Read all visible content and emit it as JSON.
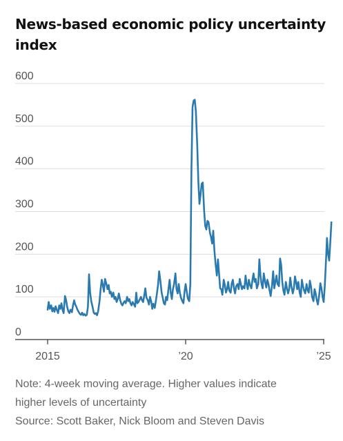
{
  "title": "News-based economic policy uncertainty index",
  "note": "Note: 4-week moving average. Higher values indicate higher levels of uncertainty",
  "note_line1": "Note: 4-week moving average. Higher values indicate",
  "note_line2": "higher levels of uncertainty",
  "source": "Source: Scott Baker, Nick Bloom and Steven Davis",
  "chart_data": {
    "type": "line",
    "title": "News-based economic policy uncertainty index",
    "xlabel": "",
    "ylabel": "",
    "xlim": [
      2015.0,
      2025.0
    ],
    "ylim": [
      0,
      600
    ],
    "yticks": [
      0,
      100,
      200,
      300,
      400,
      500,
      600
    ],
    "xticks": [
      {
        "value": 2015,
        "label": "2015"
      },
      {
        "value": 2020,
        "label": "’20"
      },
      {
        "value": 2025,
        "label": "’25"
      }
    ],
    "grid": "horizontal",
    "color": "#2a7ab0",
    "series": [
      {
        "name": "",
        "points": [
          [
            2015.0,
            70
          ],
          [
            2015.04,
            88
          ],
          [
            2015.08,
            72
          ],
          [
            2015.13,
            80
          ],
          [
            2015.17,
            66
          ],
          [
            2015.21,
            74
          ],
          [
            2015.25,
            65
          ],
          [
            2015.29,
            78
          ],
          [
            2015.33,
            70
          ],
          [
            2015.38,
            62
          ],
          [
            2015.42,
            80
          ],
          [
            2015.46,
            72
          ],
          [
            2015.5,
            85
          ],
          [
            2015.54,
            70
          ],
          [
            2015.58,
            62
          ],
          [
            2015.63,
            102
          ],
          [
            2015.67,
            92
          ],
          [
            2015.71,
            76
          ],
          [
            2015.75,
            66
          ],
          [
            2015.79,
            62
          ],
          [
            2015.83,
            70
          ],
          [
            2015.88,
            64
          ],
          [
            2015.92,
            80
          ],
          [
            2015.96,
            92
          ],
          [
            2016.0,
            82
          ],
          [
            2016.04,
            77
          ],
          [
            2016.08,
            70
          ],
          [
            2016.13,
            64
          ],
          [
            2016.17,
            60
          ],
          [
            2016.21,
            58
          ],
          [
            2016.25,
            63
          ],
          [
            2016.29,
            57
          ],
          [
            2016.33,
            60
          ],
          [
            2016.38,
            56
          ],
          [
            2016.42,
            58
          ],
          [
            2016.46,
            77
          ],
          [
            2016.5,
            153
          ],
          [
            2016.54,
            110
          ],
          [
            2016.58,
            90
          ],
          [
            2016.63,
            76
          ],
          [
            2016.67,
            63
          ],
          [
            2016.71,
            60
          ],
          [
            2016.75,
            62
          ],
          [
            2016.79,
            57
          ],
          [
            2016.83,
            66
          ],
          [
            2016.88,
            90
          ],
          [
            2016.92,
            118
          ],
          [
            2016.96,
            140
          ],
          [
            2017.0,
            128
          ],
          [
            2017.04,
            112
          ],
          [
            2017.08,
            142
          ],
          [
            2017.13,
            130
          ],
          [
            2017.17,
            118
          ],
          [
            2017.21,
            128
          ],
          [
            2017.25,
            108
          ],
          [
            2017.29,
            112
          ],
          [
            2017.33,
            100
          ],
          [
            2017.38,
            110
          ],
          [
            2017.42,
            95
          ],
          [
            2017.46,
            100
          ],
          [
            2017.5,
            88
          ],
          [
            2017.54,
            95
          ],
          [
            2017.58,
            108
          ],
          [
            2017.63,
            92
          ],
          [
            2017.67,
            84
          ],
          [
            2017.71,
            80
          ],
          [
            2017.75,
            86
          ],
          [
            2017.79,
            90
          ],
          [
            2017.83,
            85
          ],
          [
            2017.88,
            100
          ],
          [
            2017.92,
            90
          ],
          [
            2017.96,
            95
          ],
          [
            2018.0,
            85
          ],
          [
            2018.04,
            80
          ],
          [
            2018.08,
            88
          ],
          [
            2018.13,
            82
          ],
          [
            2018.17,
            77
          ],
          [
            2018.21,
            110
          ],
          [
            2018.25,
            85
          ],
          [
            2018.29,
            88
          ],
          [
            2018.33,
            93
          ],
          [
            2018.38,
            100
          ],
          [
            2018.42,
            92
          ],
          [
            2018.46,
            88
          ],
          [
            2018.5,
            103
          ],
          [
            2018.54,
            120
          ],
          [
            2018.58,
            98
          ],
          [
            2018.63,
            92
          ],
          [
            2018.67,
            82
          ],
          [
            2018.71,
            100
          ],
          [
            2018.75,
            90
          ],
          [
            2018.79,
            72
          ],
          [
            2018.83,
            84
          ],
          [
            2018.88,
            74
          ],
          [
            2018.92,
            90
          ],
          [
            2018.96,
            108
          ],
          [
            2019.0,
            128
          ],
          [
            2019.04,
            160
          ],
          [
            2019.08,
            140
          ],
          [
            2019.13,
            110
          ],
          [
            2019.17,
            98
          ],
          [
            2019.21,
            85
          ],
          [
            2019.25,
            82
          ],
          [
            2019.29,
            100
          ],
          [
            2019.33,
            92
          ],
          [
            2019.38,
            120
          ],
          [
            2019.42,
            140
          ],
          [
            2019.46,
            110
          ],
          [
            2019.5,
            95
          ],
          [
            2019.54,
            118
          ],
          [
            2019.58,
            130
          ],
          [
            2019.63,
            155
          ],
          [
            2019.67,
            118
          ],
          [
            2019.71,
            108
          ],
          [
            2019.75,
            130
          ],
          [
            2019.79,
            110
          ],
          [
            2019.83,
            98
          ],
          [
            2019.88,
            90
          ],
          [
            2019.92,
            85
          ],
          [
            2019.96,
            112
          ],
          [
            2020.0,
            130
          ],
          [
            2020.04,
            112
          ],
          [
            2020.08,
            96
          ],
          [
            2020.13,
            90
          ],
          [
            2020.17,
            130
          ],
          [
            2020.21,
            400
          ],
          [
            2020.25,
            545
          ],
          [
            2020.29,
            560
          ],
          [
            2020.33,
            562
          ],
          [
            2020.37,
            535
          ],
          [
            2020.42,
            455
          ],
          [
            2020.46,
            370
          ],
          [
            2020.5,
            318
          ],
          [
            2020.54,
            340
          ],
          [
            2020.58,
            365
          ],
          [
            2020.62,
            368
          ],
          [
            2020.67,
            302
          ],
          [
            2020.71,
            266
          ],
          [
            2020.75,
            258
          ],
          [
            2020.79,
            278
          ],
          [
            2020.83,
            275
          ],
          [
            2020.88,
            250
          ],
          [
            2020.92,
            240
          ],
          [
            2020.96,
            225
          ],
          [
            2021.0,
            255
          ],
          [
            2021.04,
            210
          ],
          [
            2021.08,
            180
          ],
          [
            2021.13,
            150
          ],
          [
            2021.17,
            188
          ],
          [
            2021.21,
            155
          ],
          [
            2021.25,
            120
          ],
          [
            2021.29,
            118
          ],
          [
            2021.33,
            105
          ],
          [
            2021.38,
            140
          ],
          [
            2021.42,
            128
          ],
          [
            2021.46,
            110
          ],
          [
            2021.5,
            118
          ],
          [
            2021.54,
            135
          ],
          [
            2021.58,
            115
          ],
          [
            2021.63,
            110
          ],
          [
            2021.67,
            132
          ],
          [
            2021.71,
            140
          ],
          [
            2021.75,
            120
          ],
          [
            2021.79,
            108
          ],
          [
            2021.83,
            125
          ],
          [
            2021.88,
            130
          ],
          [
            2021.92,
            118
          ],
          [
            2021.96,
            142
          ],
          [
            2022.0,
            130
          ],
          [
            2022.04,
            118
          ],
          [
            2022.08,
            125
          ],
          [
            2022.13,
            120
          ],
          [
            2022.17,
            150
          ],
          [
            2022.21,
            130
          ],
          [
            2022.25,
            118
          ],
          [
            2022.29,
            140
          ],
          [
            2022.33,
            128
          ],
          [
            2022.38,
            120
          ],
          [
            2022.42,
            140
          ],
          [
            2022.46,
            155
          ],
          [
            2022.5,
            135
          ],
          [
            2022.54,
            142
          ],
          [
            2022.58,
            120
          ],
          [
            2022.63,
            130
          ],
          [
            2022.67,
            188
          ],
          [
            2022.71,
            150
          ],
          [
            2022.75,
            130
          ],
          [
            2022.79,
            120
          ],
          [
            2022.83,
            155
          ],
          [
            2022.88,
            135
          ],
          [
            2022.92,
            122
          ],
          [
            2022.96,
            140
          ],
          [
            2023.0,
            130
          ],
          [
            2023.04,
            115
          ],
          [
            2023.08,
            102
          ],
          [
            2023.13,
            128
          ],
          [
            2023.17,
            160
          ],
          [
            2023.21,
            120
          ],
          [
            2023.25,
            135
          ],
          [
            2023.29,
            150
          ],
          [
            2023.33,
            130
          ],
          [
            2023.38,
            125
          ],
          [
            2023.42,
            190
          ],
          [
            2023.46,
            175
          ],
          [
            2023.5,
            135
          ],
          [
            2023.54,
            115
          ],
          [
            2023.58,
            105
          ],
          [
            2023.63,
            135
          ],
          [
            2023.67,
            120
          ],
          [
            2023.71,
            108
          ],
          [
            2023.75,
            118
          ],
          [
            2023.79,
            145
          ],
          [
            2023.83,
            125
          ],
          [
            2023.88,
            108
          ],
          [
            2023.92,
            120
          ],
          [
            2023.96,
            148
          ],
          [
            2024.0,
            135
          ],
          [
            2024.04,
            118
          ],
          [
            2024.08,
            135
          ],
          [
            2024.13,
            110
          ],
          [
            2024.17,
            100
          ],
          [
            2024.21,
            140
          ],
          [
            2024.25,
            125
          ],
          [
            2024.29,
            115
          ],
          [
            2024.33,
            108
          ],
          [
            2024.38,
            130
          ],
          [
            2024.42,
            115
          ],
          [
            2024.46,
            110
          ],
          [
            2024.5,
            138
          ],
          [
            2024.54,
            125
          ],
          [
            2024.58,
            100
          ],
          [
            2024.63,
            90
          ],
          [
            2024.67,
            118
          ],
          [
            2024.71,
            108
          ],
          [
            2024.75,
            92
          ],
          [
            2024.79,
            82
          ],
          [
            2024.83,
            100
          ],
          [
            2024.88,
            132
          ],
          [
            2024.92,
            120
          ],
          [
            2024.96,
            100
          ],
          [
            2025.0,
            88
          ],
          [
            2025.04,
            125
          ],
          [
            2025.08,
            180
          ],
          [
            2025.12,
            238
          ],
          [
            2025.16,
            200
          ],
          [
            2025.2,
            185
          ],
          [
            2025.24,
            228
          ],
          [
            2025.28,
            275
          ]
        ]
      }
    ]
  }
}
